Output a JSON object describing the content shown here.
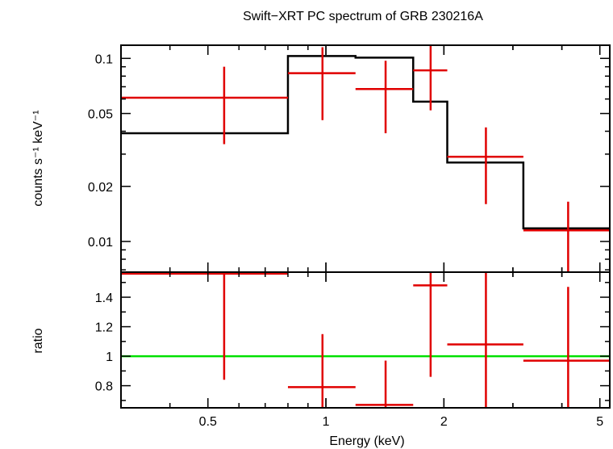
{
  "title": "Swift−XRT PC spectrum of GRB 230216A",
  "colors": {
    "data": "#e00000",
    "model": "#000000",
    "unity": "#00e000",
    "axes": "#000000"
  },
  "chart_data": [
    {
      "type": "line",
      "panel": "spectrum",
      "ylabel": "counts s⁻¹ keV⁻¹",
      "xscale": "log",
      "yscale": "log",
      "xlim": [
        0.3,
        5.3
      ],
      "ylim": [
        0.0068,
        0.118
      ],
      "yticks": [
        0.01,
        0.02,
        0.05,
        0.1
      ],
      "ytick_labels": [
        "0.01",
        "0.02",
        "0.05",
        "0.1"
      ],
      "series": [
        {
          "role": "data",
          "points": [
            {
              "x": 0.55,
              "xlo": 0.3,
              "xhi": 0.8,
              "y": 0.061,
              "ylo": 0.034,
              "yhi": 0.09
            },
            {
              "x": 0.98,
              "xlo": 0.8,
              "xhi": 1.19,
              "y": 0.083,
              "ylo": 0.046,
              "yhi": 0.115
            },
            {
              "x": 1.42,
              "xlo": 1.19,
              "xhi": 1.67,
              "y": 0.068,
              "ylo": 0.039,
              "yhi": 0.097
            },
            {
              "x": 1.85,
              "xlo": 1.67,
              "xhi": 2.04,
              "y": 0.086,
              "ylo": 0.052,
              "yhi": 0.118
            },
            {
              "x": 2.56,
              "xlo": 2.04,
              "xhi": 3.19,
              "y": 0.029,
              "ylo": 0.016,
              "yhi": 0.042
            },
            {
              "x": 4.15,
              "xlo": 3.19,
              "xhi": 5.3,
              "y": 0.0115,
              "ylo": 0.0068,
              "yhi": 0.0165
            }
          ]
        },
        {
          "role": "model",
          "steps": [
            {
              "xlo": 0.3,
              "xhi": 0.8,
              "y": 0.039
            },
            {
              "xlo": 0.8,
              "xhi": 1.19,
              "y": 0.103
            },
            {
              "xlo": 1.19,
              "xhi": 1.67,
              "y": 0.101
            },
            {
              "xlo": 1.67,
              "xhi": 2.04,
              "y": 0.058
            },
            {
              "xlo": 2.04,
              "xhi": 3.19,
              "y": 0.027
            },
            {
              "xlo": 3.19,
              "xhi": 5.3,
              "y": 0.0118
            }
          ]
        }
      ]
    },
    {
      "type": "line",
      "panel": "ratio",
      "xlabel": "Energy (keV)",
      "ylabel": "ratio",
      "xscale": "log",
      "xlim": [
        0.3,
        5.3
      ],
      "ylim": [
        0.65,
        1.57
      ],
      "xticks": [
        0.5,
        1,
        2,
        5
      ],
      "xtick_labels": [
        "0.5",
        "1",
        "2",
        "5"
      ],
      "yticks": [
        0.8,
        1,
        1.2,
        1.4
      ],
      "ytick_labels": [
        "0.8",
        "1",
        "1.2",
        "1.4"
      ],
      "reference_line": 1,
      "series": [
        {
          "role": "data",
          "points": [
            {
              "x": 0.55,
              "xlo": 0.3,
              "xhi": 0.8,
              "y": 1.56,
              "ylo": 0.84,
              "yhi": 1.57
            },
            {
              "x": 0.98,
              "xlo": 0.8,
              "xhi": 1.19,
              "y": 0.79,
              "ylo": 0.65,
              "yhi": 1.15
            },
            {
              "x": 1.42,
              "xlo": 1.19,
              "xhi": 1.67,
              "y": 0.67,
              "ylo": 0.65,
              "yhi": 0.97
            },
            {
              "x": 1.85,
              "xlo": 1.67,
              "xhi": 2.04,
              "y": 1.48,
              "ylo": 0.86,
              "yhi": 1.57
            },
            {
              "x": 2.56,
              "xlo": 2.04,
              "xhi": 3.19,
              "y": 1.08,
              "ylo": 0.65,
              "yhi": 1.57
            },
            {
              "x": 4.15,
              "xlo": 3.19,
              "xhi": 5.3,
              "y": 0.97,
              "ylo": 0.65,
              "yhi": 1.47
            }
          ]
        }
      ]
    }
  ]
}
